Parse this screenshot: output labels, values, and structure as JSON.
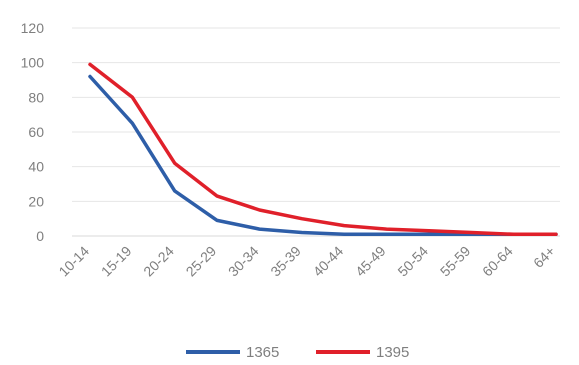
{
  "chart_data": {
    "type": "line",
    "title": "",
    "xlabel": "",
    "ylabel": "",
    "categories": [
      "10-14",
      "15-19",
      "20-24",
      "25-29",
      "30-34",
      "35-39",
      "40-44",
      "45-49",
      "50-54",
      "55-59",
      "60-64",
      "64+"
    ],
    "ylim": [
      0,
      120
    ],
    "yticks": [
      0,
      20,
      40,
      60,
      80,
      100,
      120
    ],
    "grid": true,
    "legend_position": "bottom",
    "series": [
      {
        "name": "1365",
        "color": "#2e5ea8",
        "values": [
          92,
          65,
          26,
          9,
          4,
          2,
          1,
          1,
          1,
          1,
          1,
          1
        ]
      },
      {
        "name": "1395",
        "color": "#e0202a",
        "values": [
          99,
          80,
          42,
          23,
          15,
          10,
          6,
          4,
          3,
          2,
          1,
          1
        ]
      }
    ]
  }
}
